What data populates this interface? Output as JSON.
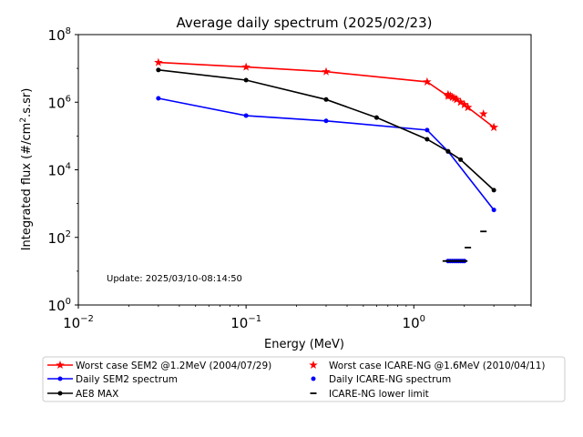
{
  "chart_data": {
    "type": "line",
    "title": "Average daily spectrum (2025/02/23)",
    "xlabel": "Energy (MeV)",
    "ylabel_main": "Integrated flux (#/cm",
    "ylabel_sup": "2",
    "ylabel_tail": ".s.sr)",
    "x_scale": "log",
    "y_scale": "log",
    "xlim": [
      0.01,
      5
    ],
    "ylim": [
      1,
      100000000
    ],
    "x_ticks": [
      {
        "value": 0.01,
        "base": "10",
        "exp": "−2"
      },
      {
        "value": 0.1,
        "base": "10",
        "exp": "−1"
      },
      {
        "value": 1,
        "base": "10",
        "exp": "0"
      }
    ],
    "y_ticks": [
      {
        "value": 1,
        "base": "10",
        "exp": "0"
      },
      {
        "value": 100,
        "base": "10",
        "exp": "2"
      },
      {
        "value": 10000,
        "base": "10",
        "exp": "4"
      },
      {
        "value": 1000000,
        "base": "10",
        "exp": "6"
      },
      {
        "value": 100000000,
        "base": "10",
        "exp": "8"
      }
    ],
    "annotation": "Update: 2025/03/10-08:14:50",
    "grid": false,
    "legend_position": "bottom",
    "series": [
      {
        "name": "Worst case SEM2 @1.2MeV (2004/07/29)",
        "color": "#ff0000",
        "marker": "star",
        "line": true,
        "x": [
          0.03,
          0.1,
          0.3,
          1.2,
          1.6,
          1.7,
          1.8,
          1.9,
          2.0,
          2.1,
          3.0
        ],
        "y": [
          15000000,
          11000000,
          8000000,
          4000000,
          1500000,
          1400000,
          1200000,
          1000000,
          850000,
          700000,
          180000
        ]
      },
      {
        "name": "Daily SEM2 spectrum",
        "color": "#0000ff",
        "marker": "dot",
        "line": true,
        "x": [
          0.03,
          0.1,
          0.3,
          1.2,
          1.6,
          3.0
        ],
        "y": [
          1300000,
          400000,
          280000,
          150000,
          35000,
          650
        ]
      },
      {
        "name": "AE8 MAX",
        "color": "#000000",
        "marker": "dot",
        "line": true,
        "x": [
          0.03,
          0.1,
          0.3,
          0.6,
          1.2,
          1.6,
          1.9,
          3.0
        ],
        "y": [
          9000000,
          4500000,
          1200000,
          350000,
          80000,
          35000,
          20000,
          2500
        ]
      },
      {
        "name": "Worst case ICARE-NG @1.6MeV (2010/04/11)",
        "color": "#ff0000",
        "marker": "star",
        "line": false,
        "x": [
          1.6,
          1.65,
          1.7,
          1.75,
          1.8,
          1.9,
          2.0,
          2.1,
          2.6,
          3.0
        ],
        "y": [
          1700000,
          1550000,
          1400000,
          1300000,
          1200000,
          1000000,
          850000,
          700000,
          450000,
          180000
        ]
      },
      {
        "name": "Daily ICARE-NG spectrum",
        "color": "#0000ff",
        "marker": "dot",
        "line": false,
        "x": [
          1.6,
          1.65,
          1.7,
          1.75,
          1.8,
          1.85,
          1.9,
          1.95,
          2.0
        ],
        "y": [
          20,
          20,
          20,
          20,
          20,
          20,
          20,
          20,
          20
        ]
      },
      {
        "name": "ICARE-NG lower limit",
        "color": "#000000",
        "marker": "dash",
        "line": false,
        "x": [
          1.55,
          1.6,
          1.65,
          1.7,
          1.75,
          1.8,
          1.85,
          1.9,
          1.95,
          2.0,
          2.1,
          2.6
        ],
        "y": [
          20,
          20,
          20,
          20,
          20,
          20,
          20,
          20,
          20,
          20,
          50,
          150
        ]
      }
    ]
  }
}
